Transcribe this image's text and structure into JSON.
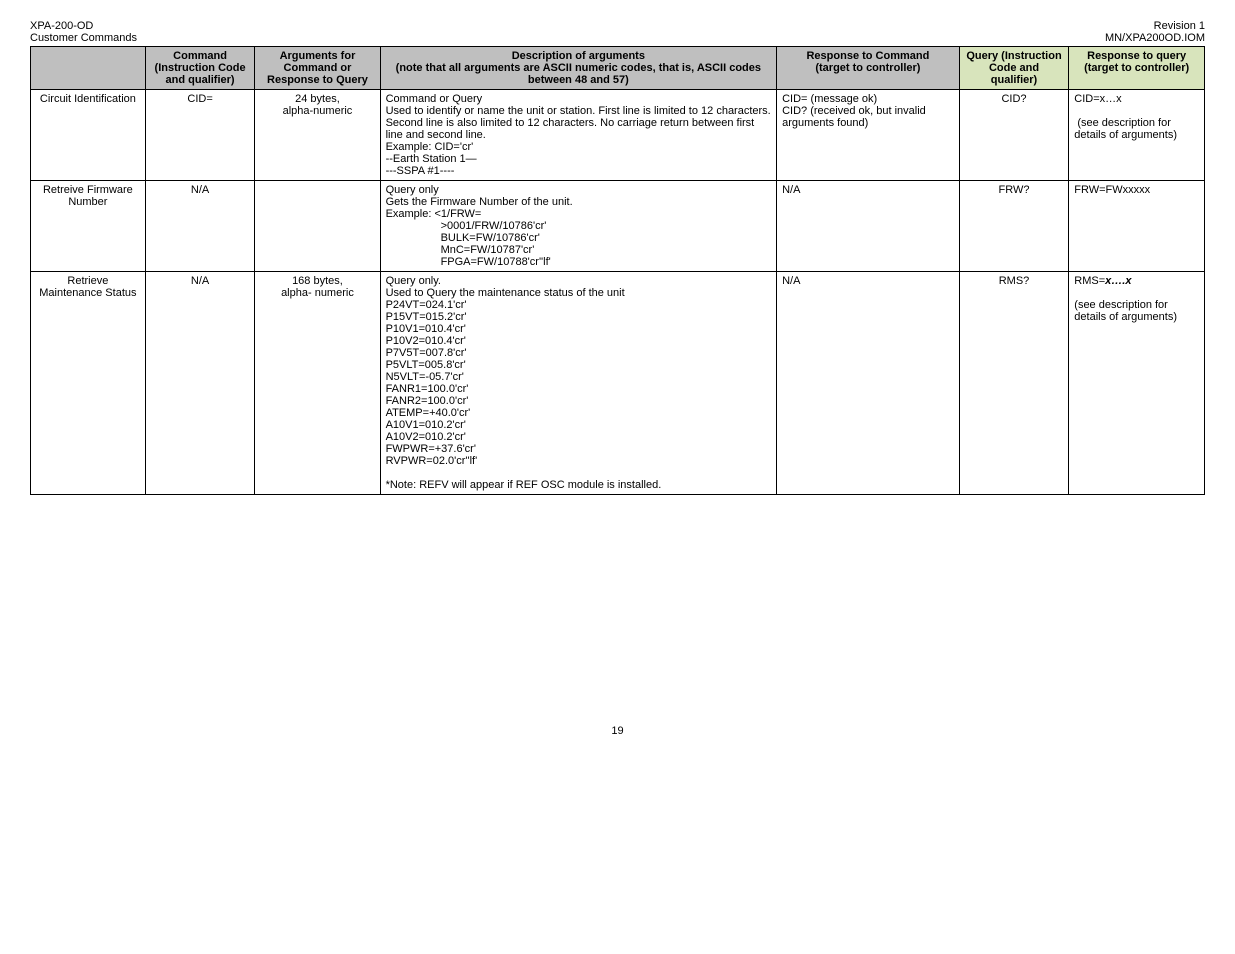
{
  "header": {
    "left1": "XPA-200-OD",
    "left2": "Customer Commands",
    "right1": "Revision 1",
    "right2": "MN/XPA200OD.IOM"
  },
  "columns": {
    "param": "",
    "cmd": "Command (Instruction Code and qualifier)",
    "args": "Arguments for Command or Response to Query",
    "desc": "Description of arguments\n(note that all arguments are ASCII numeric codes, that is, ASCII codes between 48 and 57)",
    "resp": "Response to Command\n(target to controller)",
    "query": "Query (Instruction Code and qualifier)",
    "qresp": "Response to query (target to controller)"
  },
  "rows": [
    {
      "param": "Circuit Identification",
      "cmd": "CID=",
      "args": "24 bytes,\nalpha-numeric",
      "desc": "Command or Query\nUsed to identify or name the unit or station. First line is limited to 12 characters. Second line is also limited to 12 characters. No carriage return between first line and second line.\nExample: CID='cr'\n--Earth Station 1—\n---SSPA #1----",
      "resp": "CID= (message ok)\nCID? (received ok, but invalid arguments found)",
      "query": "CID?",
      "qresp_pre": "CID=x…x\n\n",
      "qresp_post": "(see description for details of arguments)"
    },
    {
      "param": "Retreive Firmware Number",
      "cmd": "N/A",
      "args": "",
      "desc_pre": "Query only\nGets the Firmware Number of the unit.\nExample: <1/FRW=",
      "desc_indent": ">0001/FRW/10786'cr'\nBULK=FW/10786'cr'\nMnC=FW/10787'cr'\nFPGA=FW/10788'cr''lf'",
      "resp": "N/A",
      "query": "FRW?",
      "qresp": "FRW=FWxxxxx"
    },
    {
      "param": "Retrieve Maintenance Status",
      "cmd": "N/A",
      "args": "168 bytes,\nalpha- numeric",
      "desc": "Query only.\nUsed to Query the maintenance status of the unit\nP24VT=024.1'cr'\nP15VT=015.2'cr'\nP10V1=010.4'cr'\nP10V2=010.4'cr'\nP7V5T=007.8'cr'\nP5VLT=005.8'cr'\nN5VLT=-05.7'cr'\nFANR1=100.0'cr'\nFANR2=100.0'cr'\nATEMP=+40.0'cr'\nA10V1=010.2'cr'\nA10V2=010.2'cr'\nFWPWR=+37.6'cr'\nRVPWR=02.0'cr''lf'\n\n*Note: REFV will appear if REF OSC module is installed.",
      "resp": "N/A",
      "query": "RMS?",
      "qresp_rms_pre": "RMS=",
      "qresp_rms_ital": "x….x",
      "qresp_rms_post": "\n\n(see description for details of arguments)"
    }
  ],
  "page": "19"
}
